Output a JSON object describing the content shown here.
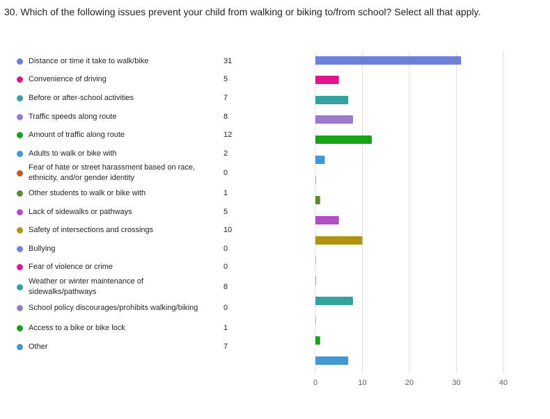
{
  "question": "30. Which of the following issues prevent your child from walking or biking to/from school? Select all that apply.",
  "chart_data": {
    "type": "bar",
    "orientation": "horizontal",
    "title": "30. Which of the following issues prevent your child from walking or biking to/from school? Select all that apply.",
    "xlim": [
      0,
      40
    ],
    "xticks": [
      0,
      10,
      20,
      30,
      40
    ],
    "categories": [
      "Distance or time it take to walk/bike",
      "Convenience of driving",
      "Before or after-school activities",
      "Traffic speeds along route",
      "Amount of traffic along route",
      "Adults to walk or bike with",
      "Fear of hate or street harassment based on race, ethnicity, and/or gender identity",
      "Other students to walk or bike with",
      "Lack of sidewalks or pathways",
      "Safety of intersections and crossings",
      "Bullying",
      "Fear of violence or crime",
      "Weather or winter maintenance of sidewalks/pathways",
      "School policy discourages/prohibits walking/biking",
      "Access to a bike or bike lock",
      "Other"
    ],
    "values": [
      31,
      5,
      7,
      8,
      12,
      2,
      0,
      1,
      5,
      10,
      0,
      0,
      8,
      0,
      1,
      7
    ],
    "colors": [
      "#6b7fdf",
      "#e3158e",
      "#35a2a2",
      "#9a7ac8",
      "#1aa11a",
      "#3f98d8",
      "#c35b22",
      "#5d8a2e",
      "#b04dc5",
      "#b09410",
      "#6d85e0",
      "#e0168f",
      "#34a0a0",
      "#9878c8",
      "#18a018",
      "#3f98d8"
    ]
  }
}
